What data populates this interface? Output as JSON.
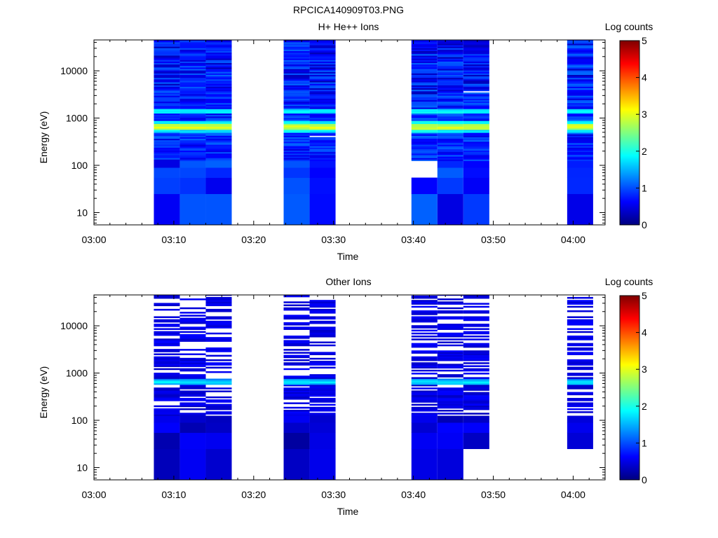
{
  "figure_title": "RPCICA140909T03.PNG",
  "chart_data": [
    {
      "type": "heatmap",
      "title": "H+ He++ Ions",
      "xlabel": "Time",
      "ylabel": "Energy (eV)",
      "x_ticks": [
        "03:00",
        "03:10",
        "03:20",
        "03:30",
        "03:40",
        "03:50",
        "04:00"
      ],
      "x_range_min": [
        0,
        64
      ],
      "y_scale": "log",
      "y_ticks": [
        10,
        100,
        1000,
        10000
      ],
      "y_range": [
        5.5,
        45000
      ],
      "colorbar": {
        "label": "Log counts",
        "range": [
          0,
          5
        ],
        "ticks": [
          "0",
          "1",
          "2",
          "3",
          "4",
          "5"
        ],
        "colormap": "rainbow"
      },
      "time_columns": [
        {
          "start": "03:07:30",
          "end": "03:10:45"
        },
        {
          "start": "03:10:45",
          "end": "03:14:00"
        },
        {
          "start": "03:14:00",
          "end": "03:17:15"
        },
        {
          "start": "03:23:45",
          "end": "03:27:00"
        },
        {
          "start": "03:27:00",
          "end": "03:30:15"
        },
        {
          "start": "03:39:45",
          "end": "03:43:00"
        },
        {
          "start": "03:43:00",
          "end": "03:46:15"
        },
        {
          "start": "03:46:15",
          "end": "03:49:30"
        },
        {
          "start": "03:59:15",
          "end": "04:02:30"
        }
      ],
      "peak_energy_eV": 650,
      "peak_log_counts": 3.0,
      "secondary_band_eV": 1400,
      "secondary_log_counts": 1.8,
      "background_log_counts": 0.8,
      "empty_cells": [
        {
          "column": 4,
          "energy_eV": 420
        },
        {
          "column": 5,
          "energy_eV": 80
        },
        {
          "column": 5,
          "energy_eV": 90
        },
        {
          "column": 7,
          "energy_eV": 3600
        }
      ]
    },
    {
      "type": "heatmap",
      "title": "Other Ions",
      "xlabel": "Time",
      "ylabel": "Energy (eV)",
      "x_ticks": [
        "03:00",
        "03:10",
        "03:20",
        "03:30",
        "03:40",
        "03:50",
        "04:00"
      ],
      "x_range_min": [
        0,
        64
      ],
      "y_scale": "log",
      "y_ticks": [
        10,
        100,
        1000,
        10000
      ],
      "y_range": [
        5.5,
        45000
      ],
      "colorbar": {
        "label": "Log counts",
        "range": [
          0,
          5
        ],
        "ticks": [
          "0",
          "1",
          "2",
          "3",
          "4",
          "5"
        ],
        "colormap": "rainbow"
      },
      "time_columns": [
        {
          "start": "03:07:30",
          "end": "03:10:45"
        },
        {
          "start": "03:10:45",
          "end": "03:14:00"
        },
        {
          "start": "03:14:00",
          "end": "03:17:15"
        },
        {
          "start": "03:23:45",
          "end": "03:27:00"
        },
        {
          "start": "03:27:00",
          "end": "03:30:15"
        },
        {
          "start": "03:39:45",
          "end": "03:43:00"
        },
        {
          "start": "03:43:00",
          "end": "03:46:15"
        },
        {
          "start": "03:46:15",
          "end": "03:49:30"
        },
        {
          "start": "03:59:15",
          "end": "04:02:30"
        }
      ],
      "peak_energy_eV": 650,
      "peak_log_counts": 1.8,
      "background_log_counts": 0.4,
      "sparse": true
    }
  ]
}
